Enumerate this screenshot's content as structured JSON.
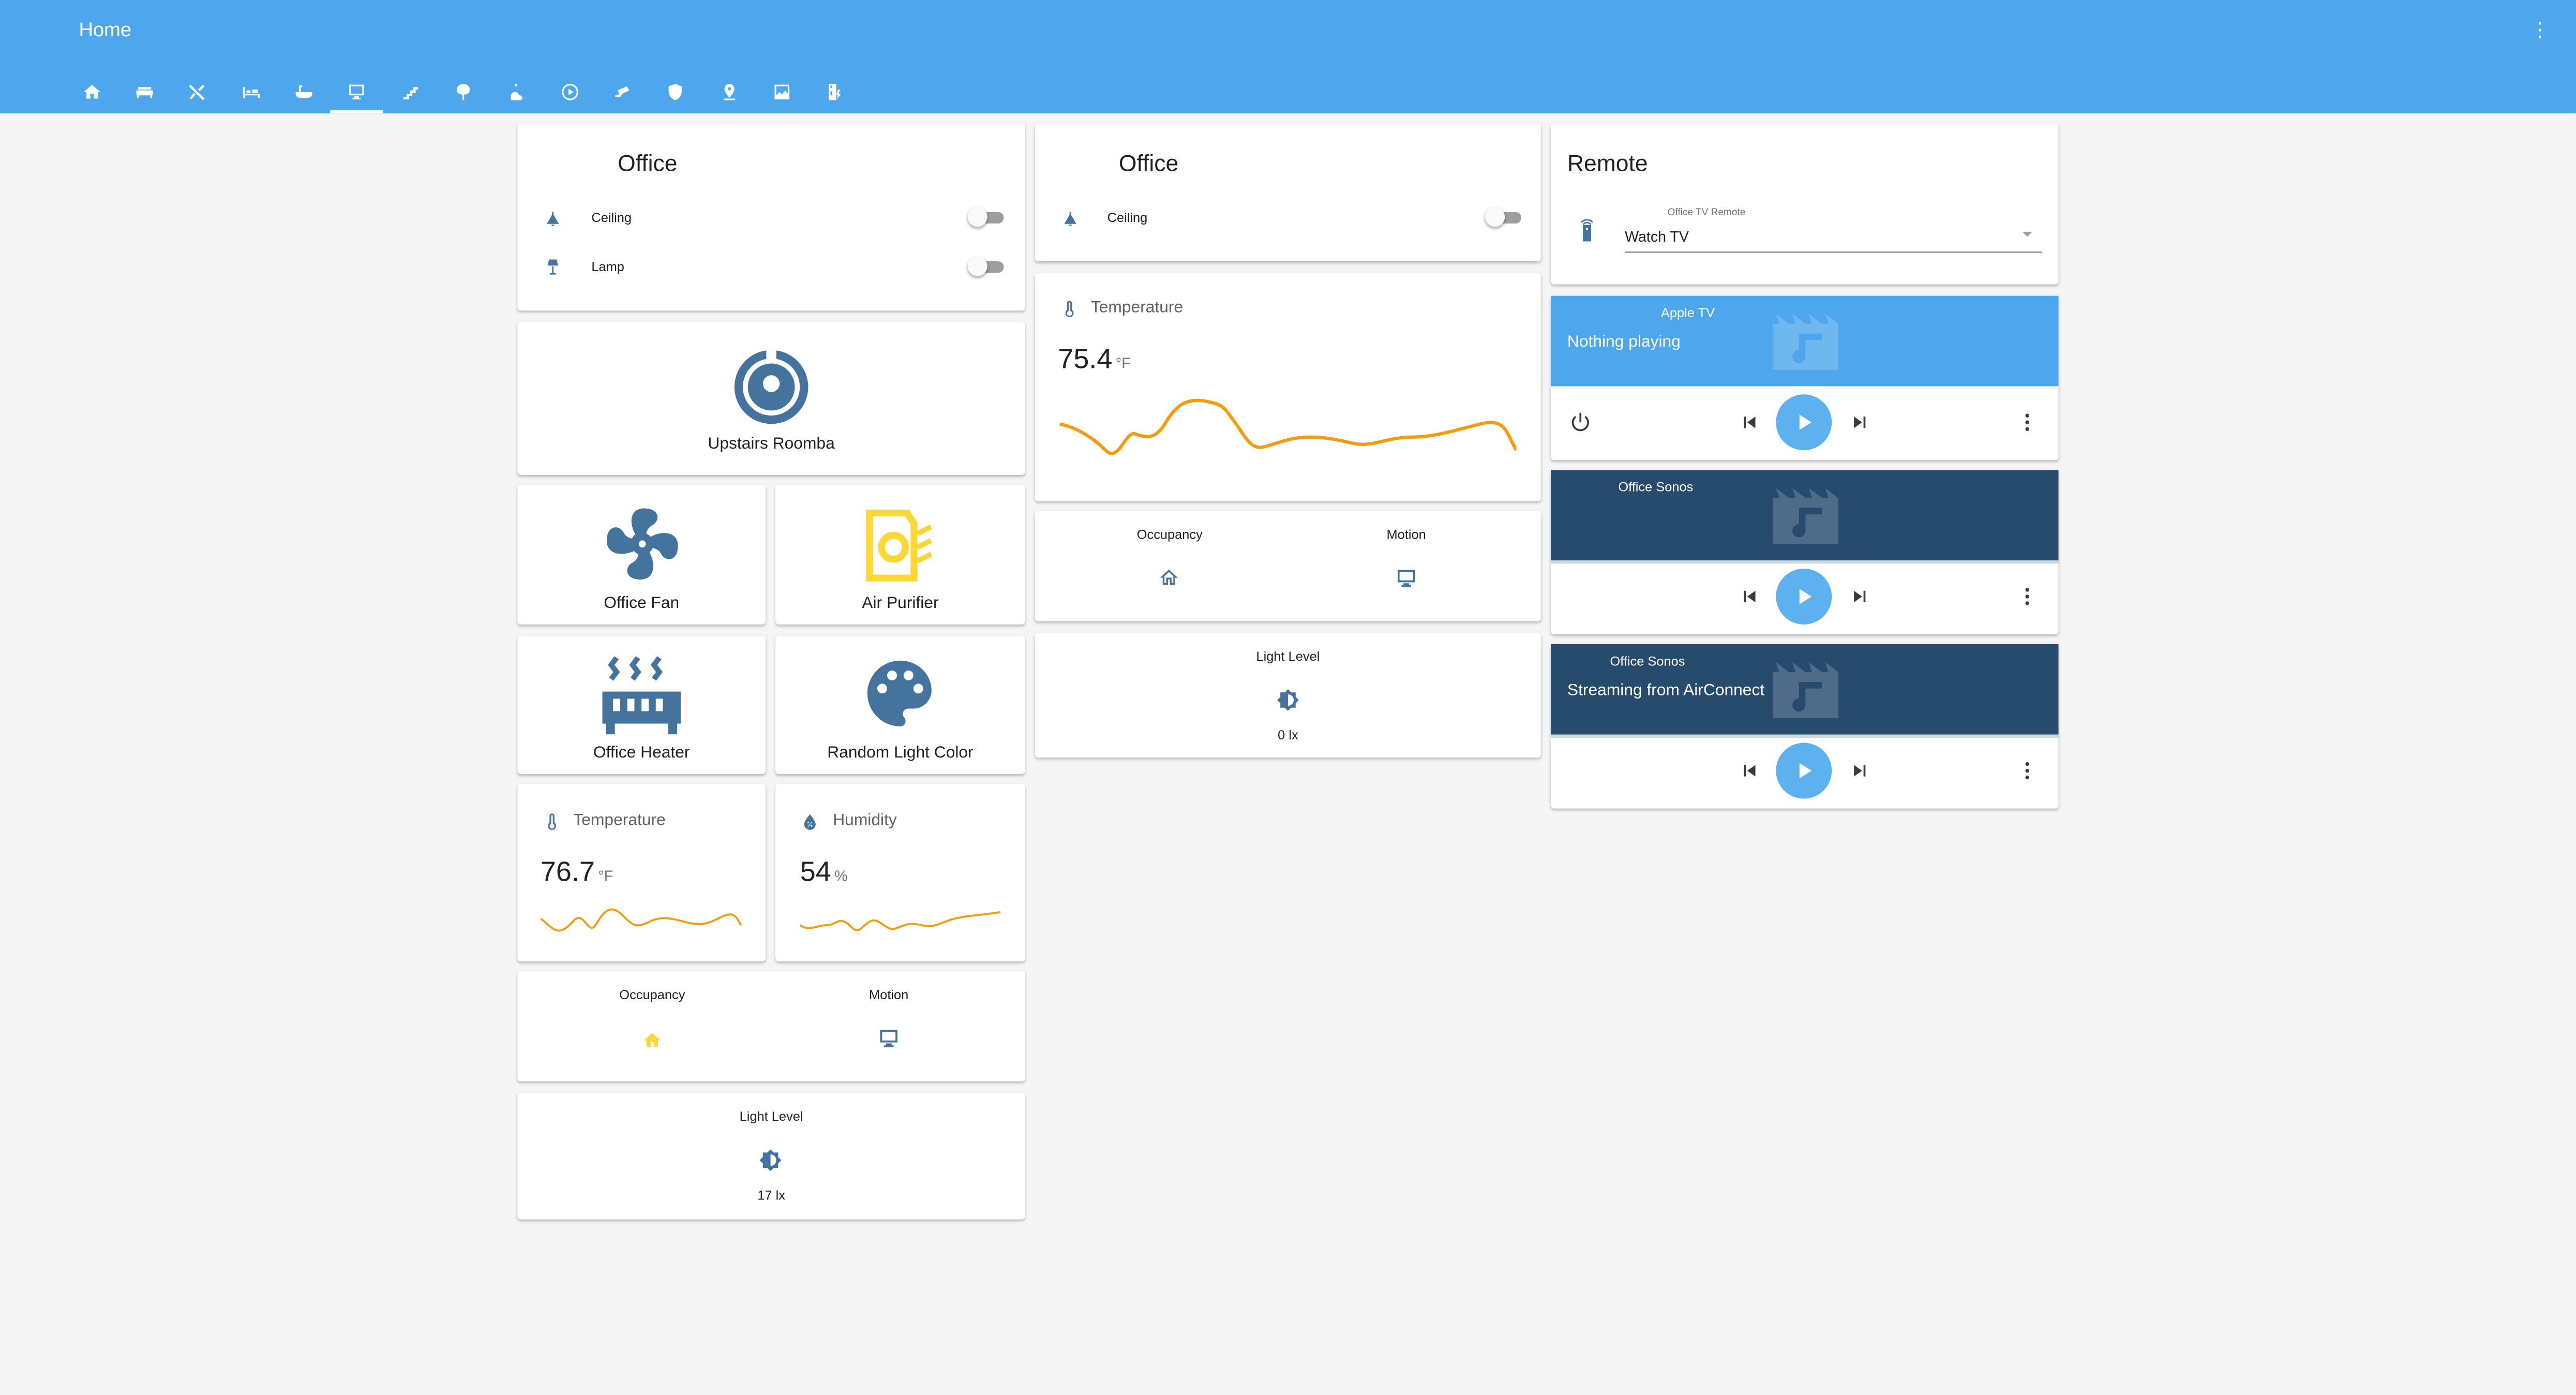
{
  "header": {
    "title": "Home",
    "menu_icon": "more-vertical-icon"
  },
  "tabs": [
    {
      "icon": "home-icon"
    },
    {
      "icon": "sofa-icon"
    },
    {
      "icon": "utensils-icon"
    },
    {
      "icon": "bed-icon"
    },
    {
      "icon": "bathtub-icon"
    },
    {
      "icon": "desktop-icon",
      "active": true
    },
    {
      "icon": "stairs-icon"
    },
    {
      "icon": "tree-icon"
    },
    {
      "icon": "weather-icon"
    },
    {
      "icon": "play-circle-icon"
    },
    {
      "icon": "cctv-icon"
    },
    {
      "icon": "shield-icon"
    },
    {
      "icon": "map-marker-icon"
    },
    {
      "icon": "image-icon"
    },
    {
      "icon": "fridge-icon"
    }
  ],
  "col1": {
    "office_card": {
      "title": "Office",
      "rows": [
        {
          "label": "Ceiling",
          "on": false
        },
        {
          "label": "Lamp",
          "on": false
        }
      ]
    },
    "roomba": {
      "label": "Upstairs Roomba"
    },
    "fan": {
      "label": "Office Fan"
    },
    "purifier": {
      "label": "Air Purifier"
    },
    "heater": {
      "label": "Office Heater"
    },
    "light_color": {
      "label": "Random Light Color"
    },
    "temperature": {
      "name": "Temperature",
      "value": "76.7",
      "unit": "°F"
    },
    "humidity": {
      "name": "Humidity",
      "value": "54",
      "unit": "%"
    },
    "occupancy": {
      "label": "Occupancy"
    },
    "motion": {
      "label": "Motion"
    },
    "light_level": {
      "label": "Light Level",
      "value": "17 lx"
    }
  },
  "col2": {
    "office_card": {
      "title": "Office",
      "rows": [
        {
          "label": "Ceiling",
          "on": false
        }
      ]
    },
    "temperature": {
      "name": "Temperature",
      "value": "75.4",
      "unit": "°F"
    },
    "occupancy": {
      "label": "Occupancy"
    },
    "motion": {
      "label": "Motion"
    },
    "light_level": {
      "label": "Light Level",
      "value": "0 lx"
    }
  },
  "col3": {
    "remote": {
      "title": "Remote",
      "select_label": "Office TV Remote",
      "select_value": "Watch TV"
    },
    "players": [
      {
        "source": "Apple TV",
        "state": "Nothing playing",
        "color": "#4ea7ec"
      },
      {
        "source": "Office Sonos",
        "state": "",
        "color": "#274b6d"
      },
      {
        "source": "Office Sonos",
        "state": "Streaming from AirConnect",
        "color": "#274b6d"
      }
    ]
  },
  "colors": {
    "header": "#4ea7ec",
    "icon_blue": "#44739e",
    "active_yellow": "#fdd835",
    "graph": "#f39c12"
  }
}
